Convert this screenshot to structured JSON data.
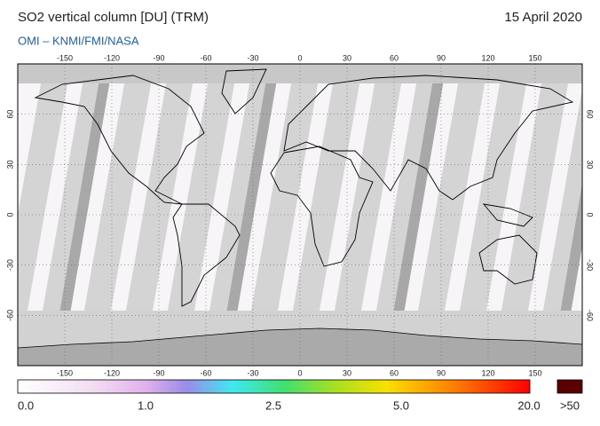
{
  "header": {
    "title": "SO2 vertical column [DU] (TRM)",
    "date": "15 April 2020",
    "source": "OMI  –  KNMI/FMI/NASA"
  },
  "map": {
    "lon_ticks": [
      -150,
      -120,
      -90,
      -60,
      -30,
      0,
      30,
      60,
      90,
      120,
      150
    ],
    "lat_ticks": [
      60,
      30,
      0,
      -30,
      -60
    ]
  },
  "colorbar": {
    "labels": [
      "0.0",
      "1.0",
      "2.5",
      "5.0",
      "20.0"
    ],
    "overflow_label": ">50"
  }
}
